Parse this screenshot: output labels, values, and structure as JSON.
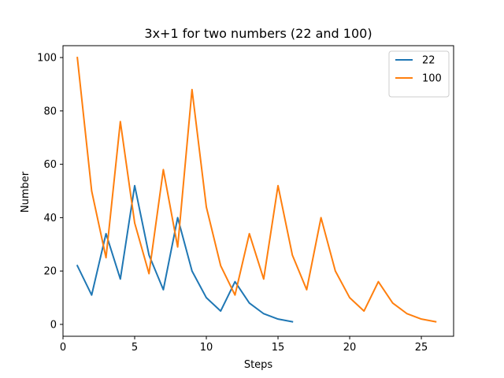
{
  "chart_data": {
    "type": "line",
    "title": "3x+1 for two numbers (22 and 100)",
    "xlabel": "Steps",
    "ylabel": "Number",
    "xlim": [
      0,
      27.25
    ],
    "ylim": [
      -4.45,
      104.45
    ],
    "xticks": [
      0,
      5,
      10,
      15,
      20,
      25
    ],
    "yticks": [
      0,
      20,
      40,
      60,
      80,
      100
    ],
    "grid": false,
    "legend_position": "top-right",
    "series": [
      {
        "name": "22",
        "color": "#1f77b4",
        "x": [
          1,
          2,
          3,
          4,
          5,
          6,
          7,
          8,
          9,
          10,
          11,
          12,
          13,
          14,
          15,
          16
        ],
        "y": [
          22,
          11,
          34,
          17,
          52,
          26,
          13,
          40,
          20,
          10,
          5,
          16,
          8,
          4,
          2,
          1
        ]
      },
      {
        "name": "100",
        "color": "#ff7f0e",
        "x": [
          1,
          2,
          3,
          4,
          5,
          6,
          7,
          8,
          9,
          10,
          11,
          12,
          13,
          14,
          15,
          16,
          17,
          18,
          19,
          20,
          21,
          22,
          23,
          24,
          25,
          26
        ],
        "y": [
          100,
          50,
          25,
          76,
          38,
          19,
          58,
          29,
          88,
          44,
          22,
          11,
          34,
          17,
          52,
          26,
          13,
          40,
          20,
          10,
          5,
          16,
          8,
          4,
          2,
          1
        ]
      }
    ]
  }
}
